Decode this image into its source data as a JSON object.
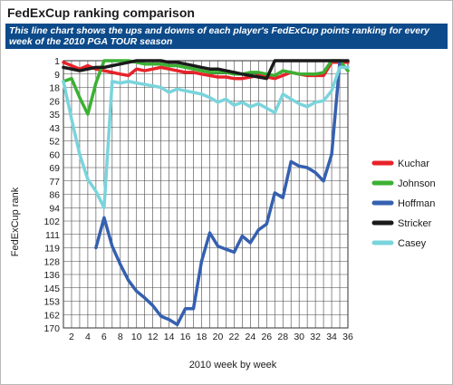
{
  "header": {
    "title": "FedExCup ranking comparison",
    "subtitle": "This line chart shows the ups and downs of each player's FedExCup points ranking for every week of the 2010 PGA TOUR season"
  },
  "chart_data": {
    "type": "line",
    "title": "FedExCup ranking comparison",
    "xlabel": "2010 week by week",
    "ylabel": "FedExCup rank",
    "y_inverted": true,
    "x_ticks": [
      1,
      2,
      3,
      4,
      5,
      6,
      7,
      8,
      9,
      10,
      11,
      12,
      13,
      14,
      15,
      16,
      17,
      18,
      19,
      20,
      21,
      22,
      23,
      24,
      25,
      26,
      27,
      28,
      29,
      30,
      31,
      32,
      33,
      34,
      35,
      36
    ],
    "x_tick_labels": [
      "2",
      "4",
      "6",
      "8",
      "10",
      "12",
      "14",
      "16",
      "18",
      "20",
      "22",
      "24",
      "26",
      "28",
      "30",
      "32",
      "34",
      "36"
    ],
    "x_tick_label_values": [
      2,
      4,
      6,
      8,
      10,
      12,
      14,
      16,
      18,
      20,
      22,
      24,
      26,
      28,
      30,
      32,
      34,
      36
    ],
    "y_ticks": [
      1,
      9,
      18,
      26,
      35,
      43,
      52,
      60,
      69,
      77,
      86,
      94,
      102,
      111,
      119,
      128,
      136,
      145,
      153,
      162,
      170
    ],
    "grid": true,
    "legend_position": "right",
    "series": [
      {
        "name": "Kuchar",
        "color": "#e8222a",
        "x": [
          1,
          2,
          3,
          4,
          5,
          6,
          7,
          8,
          9,
          10,
          11,
          12,
          13,
          14,
          15,
          16,
          17,
          18,
          19,
          20,
          21,
          22,
          23,
          24,
          25,
          26,
          27,
          28,
          29,
          30,
          31,
          32,
          33,
          34,
          35,
          36
        ],
        "values": [
          2,
          4,
          6,
          4,
          6,
          7,
          8,
          9,
          10,
          6,
          7,
          6,
          5,
          6,
          7,
          8,
          8,
          9,
          10,
          11,
          11,
          12,
          12,
          11,
          10,
          11,
          12,
          10,
          8,
          9,
          10,
          10,
          10,
          2,
          2,
          2
        ]
      },
      {
        "name": "Johnson",
        "color": "#3cb033",
        "x": [
          1,
          2,
          3,
          4,
          5,
          6,
          7,
          8,
          9,
          10,
          11,
          12,
          13,
          14,
          15,
          16,
          17,
          18,
          19,
          20,
          21,
          22,
          23,
          24,
          25,
          26,
          27,
          28,
          29,
          30,
          31,
          32,
          33,
          34,
          35,
          36
        ],
        "values": [
          14,
          12,
          24,
          35,
          15,
          1,
          1,
          1,
          1,
          2,
          3,
          3,
          3,
          4,
          4,
          5,
          6,
          7,
          8,
          8,
          8,
          9,
          9,
          8,
          8,
          9,
          10,
          7,
          8,
          9,
          9,
          9,
          8,
          1,
          1,
          7
        ]
      },
      {
        "name": "Hoffman",
        "color": "#3560b0",
        "x": [
          5,
          6,
          7,
          8,
          9,
          10,
          11,
          12,
          13,
          14,
          15,
          16,
          17,
          18,
          19,
          20,
          21,
          22,
          23,
          24,
          25,
          26,
          27,
          28,
          29,
          30,
          31,
          32,
          33,
          34,
          35
        ],
        "values": [
          119,
          100,
          118,
          130,
          140,
          147,
          151,
          156,
          163,
          165,
          168,
          158,
          158,
          128,
          110,
          118,
          120,
          122,
          112,
          116,
          108,
          104,
          85,
          88,
          65,
          68,
          69,
          72,
          77,
          60,
          2
        ]
      },
      {
        "name": "Stricker",
        "color": "#1a1a1a",
        "x": [
          1,
          2,
          3,
          4,
          5,
          6,
          7,
          8,
          9,
          10,
          11,
          12,
          13,
          14,
          15,
          16,
          17,
          18,
          19,
          20,
          21,
          22,
          23,
          24,
          25,
          26,
          27,
          28,
          29,
          30,
          31,
          32,
          33,
          34,
          35,
          36
        ],
        "values": [
          5,
          6,
          7,
          6,
          5,
          5,
          4,
          3,
          2,
          1,
          1,
          1,
          1,
          2,
          2,
          3,
          4,
          5,
          6,
          6,
          7,
          8,
          9,
          10,
          11,
          12,
          1,
          1,
          1,
          1,
          1,
          1,
          1,
          1,
          1,
          1
        ]
      },
      {
        "name": "Casey",
        "color": "#7ad4dc",
        "x": [
          1,
          2,
          3,
          4,
          5,
          6,
          7,
          8,
          9,
          10,
          11,
          12,
          13,
          14,
          15,
          16,
          17,
          18,
          19,
          20,
          21,
          22,
          23,
          24,
          25,
          26,
          27,
          28,
          29,
          30,
          31,
          32,
          33,
          34,
          35,
          36
        ],
        "values": [
          14,
          38,
          60,
          76,
          84,
          94,
          14,
          15,
          14,
          15,
          16,
          17,
          18,
          21,
          19,
          20,
          21,
          22,
          24,
          27,
          25,
          29,
          27,
          30,
          28,
          31,
          34,
          22,
          25,
          28,
          30,
          27,
          26,
          20,
          5,
          5
        ]
      }
    ]
  }
}
